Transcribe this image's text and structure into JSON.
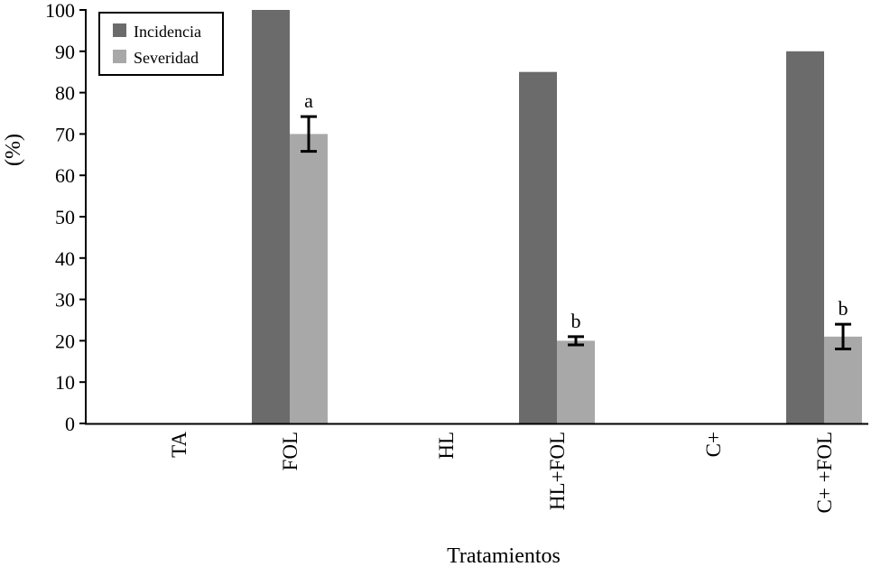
{
  "chart_data": {
    "type": "bar",
    "title": "",
    "xlabel": "Tratamientos",
    "ylabel": "(%)",
    "ylim": [
      0,
      100
    ],
    "yticks": [
      0,
      10,
      20,
      30,
      40,
      50,
      60,
      70,
      80,
      90,
      100
    ],
    "categories": [
      "TA",
      "FOL",
      "HL",
      "HL+FOL",
      "C+",
      "C+ +FOL"
    ],
    "series": [
      {
        "name": "Incidencia",
        "color": "#6b6b6b",
        "values": [
          0,
          100,
          0,
          85,
          0,
          90
        ]
      },
      {
        "name": "Severidad",
        "color": "#a8a8a8",
        "values": [
          0,
          70,
          0,
          20,
          0,
          21
        ],
        "error": [
          0,
          4.2,
          0,
          1,
          0,
          3
        ],
        "labels": [
          "",
          "a",
          "",
          "b",
          "",
          "b"
        ]
      }
    ],
    "legend": {
      "position": "top-left"
    },
    "grid": false
  }
}
